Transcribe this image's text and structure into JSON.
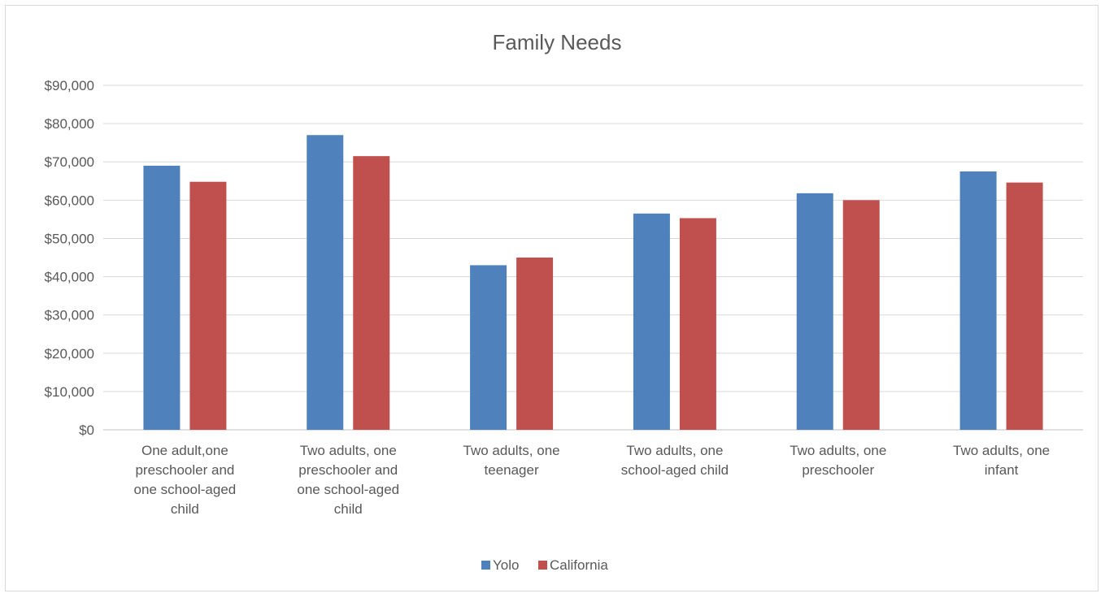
{
  "chart_data": {
    "type": "bar",
    "title": "Family Needs",
    "xlabel": "",
    "ylabel": "",
    "categories": [
      [
        "One adult,one",
        "preschooler and",
        "one school-aged",
        "child"
      ],
      [
        "Two adults, one",
        "preschooler and",
        "one school-aged",
        "child"
      ],
      [
        "Two adults, one",
        "teenager"
      ],
      [
        "Two adults, one",
        "school-aged child"
      ],
      [
        "Two adults, one",
        "preschooler"
      ],
      [
        "Two adults, one",
        "infant"
      ]
    ],
    "series": [
      {
        "name": "Yolo",
        "color": "#4f81bd",
        "values": [
          69000,
          77000,
          43000,
          56500,
          61800,
          67500
        ]
      },
      {
        "name": "California",
        "color": "#c0504d",
        "values": [
          64800,
          71500,
          45000,
          55300,
          60000,
          64600
        ]
      }
    ],
    "ylim": [
      0,
      90000
    ],
    "yticks": [
      "$0",
      "$10,000",
      "$20,000",
      "$30,000",
      "$40,000",
      "$50,000",
      "$60,000",
      "$70,000",
      "$80,000",
      "$90,000"
    ],
    "grid": true,
    "legend_position": "bottom"
  }
}
